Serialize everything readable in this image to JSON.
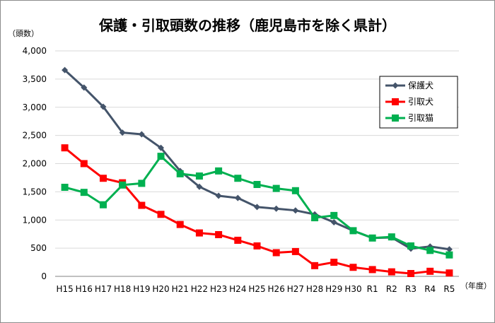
{
  "chart_data": {
    "type": "line",
    "title": "保護・引取頭数の推移（鹿児島市を除く県計）",
    "ylabel": "（頭数）",
    "xlabel": "（年度）",
    "ylim": [
      0,
      4000
    ],
    "yticks": [
      0,
      500,
      1000,
      1500,
      2000,
      2500,
      3000,
      3500,
      4000
    ],
    "ytick_labels": [
      "0",
      "500",
      "1,000",
      "1,500",
      "2,000",
      "2,500",
      "3,000",
      "3,500",
      "4,000"
    ],
    "grid": true,
    "legend_position": "top-right",
    "categories": [
      "H15",
      "H16",
      "H17",
      "H18",
      "H19",
      "H20",
      "H21",
      "H22",
      "H23",
      "H24",
      "H25",
      "H26",
      "H27",
      "H28",
      "H29",
      "H30",
      "R1",
      "R2",
      "R3",
      "R4",
      "R5"
    ],
    "series": [
      {
        "name": "保護犬",
        "color": "#44546a",
        "marker": "diamond",
        "values": [
          3660,
          3350,
          3010,
          2550,
          2520,
          2280,
          1870,
          1590,
          1430,
          1390,
          1230,
          1200,
          1170,
          1100,
          960,
          810,
          680,
          690,
          490,
          530,
          480
        ]
      },
      {
        "name": "引取犬",
        "color": "#ff0000",
        "marker": "square",
        "values": [
          2280,
          2000,
          1740,
          1660,
          1260,
          1100,
          920,
          770,
          740,
          640,
          540,
          420,
          440,
          190,
          250,
          160,
          120,
          80,
          50,
          90,
          60
        ]
      },
      {
        "name": "引取猫",
        "color": "#00b050",
        "marker": "square",
        "values": [
          1580,
          1490,
          1270,
          1620,
          1650,
          2130,
          1820,
          1780,
          1870,
          1740,
          1630,
          1560,
          1520,
          1040,
          1080,
          810,
          680,
          700,
          540,
          460,
          380
        ]
      }
    ]
  }
}
